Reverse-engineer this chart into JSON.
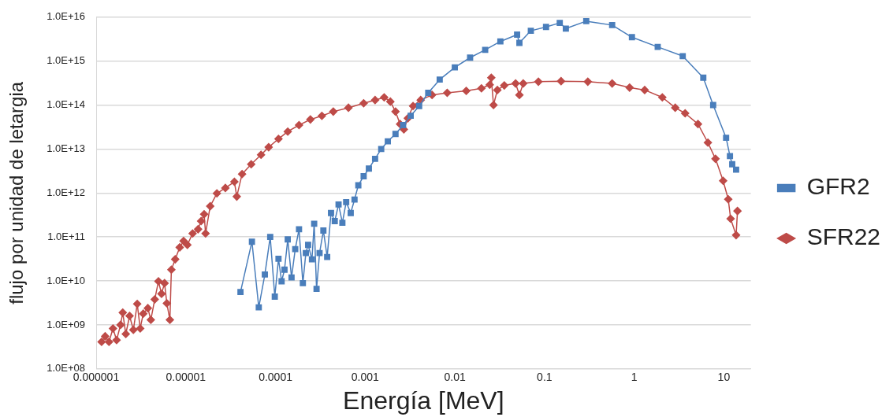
{
  "chart_data": {
    "type": "line",
    "xlabel": "Energía [MeV]",
    "ylabel": "flujo por unidad de letargia",
    "log": "xy",
    "grid": "y",
    "legend": "right",
    "xlim": [
      1e-06,
      20
    ],
    "xticks": [
      {
        "value": 1e-06,
        "label": "0.000001"
      },
      {
        "value": 1e-05,
        "label": "0.00001"
      },
      0.0001,
      0.001,
      0.01,
      0.1,
      1,
      10
    ],
    "ylim": [
      100000000.0,
      1e+16
    ],
    "yticks": [
      {
        "value": 100000000.0,
        "label": "1.0E+08"
      },
      {
        "value": 1000000000.0,
        "label": "1.0E+09"
      },
      {
        "value": 10000000000.0,
        "label": "1.0E+10"
      },
      {
        "value": 100000000000.0,
        "label": "1.0E+11"
      },
      {
        "value": 1000000000000.0,
        "label": "1.0E+12"
      },
      {
        "value": 10000000000000.0,
        "label": "1.0E+13"
      },
      {
        "value": 100000000000000.0,
        "label": "1.0E+14"
      },
      {
        "value": 1000000000000000.0,
        "label": "1.0E+15"
      },
      {
        "value": 1e+16,
        "label": "1.0E+16"
      }
    ],
    "series": [
      {
        "name": "GFR2",
        "color": "#4a7ebb",
        "marker": "square",
        "x": [
          4.07e-05,
          5.46e-05,
          6.51e-05,
          7.61e-05,
          8.73e-05,
          9.82e-05,
          0.000108,
          0.000117,
          0.000126,
          0.000137,
          0.000151,
          0.000166,
          0.000183,
          0.000202,
          0.000218,
          0.000231,
          0.000255,
          0.00027,
          0.000287,
          0.00031,
          0.000342,
          0.000377,
          0.000416,
          0.000458,
          0.000505,
          0.000557,
          0.000614,
          0.00069,
          0.000761,
          0.000839,
          0.000962,
          0.0011,
          0.00129,
          0.00151,
          0.00179,
          0.00218,
          0.00265,
          0.00322,
          0.004,
          0.00505,
          0.00678,
          0.01,
          0.0148,
          0.0218,
          0.0322,
          0.0495,
          0.0525,
          0.0704,
          0.104,
          0.148,
          0.173,
          0.292,
          0.568,
          0.944,
          1.83,
          3.48,
          5.9,
          7.6,
          10.6,
          11.7,
          12.4,
          13.7
        ],
        "values": [
          5600000000.0,
          78000000000.0,
          2500000000.0,
          14000000000.0,
          100000000000.0,
          4400000000.0,
          32000000000.0,
          9800000000.0,
          18000000000.0,
          88000000000.0,
          12000000000.0,
          53000000000.0,
          150000000000.0,
          8900000000.0,
          43000000000.0,
          66000000000.0,
          31000000000.0,
          200000000000.0,
          6600000000.0,
          43000000000.0,
          140000000000.0,
          35000000000.0,
          350000000000.0,
          230000000000.0,
          550000000000.0,
          210000000000.0,
          620000000000.0,
          350000000000.0,
          710000000000.0,
          1500000000000.0,
          2400000000000.0,
          3600000000000.0,
          6000000000000.0,
          10000000000000.0,
          15000000000000.0,
          22000000000000.0,
          35000000000000.0,
          57000000000000.0,
          95000000000000.0,
          190000000000000.0,
          380000000000000.0,
          720000000000000.0,
          1200000000000000.0,
          1800000000000000.0,
          2800000000000000.0,
          4000000000000000.0,
          2600000000000000.0,
          4900000000000000.0,
          6000000000000000.0,
          7400000000000000.0,
          5500000000000000.0,
          8100000000000000.0,
          6600000000000000.0,
          3500000000000000.0,
          2100000000000000.0,
          1300000000000000.0,
          420000000000000.0,
          100000000000000.0,
          18000000000000.0,
          6900000000000.0,
          4500000000000.0,
          3400000000000.0
        ]
      },
      {
        "name": "SFR22",
        "color": "#be4b48",
        "marker": "diamond",
        "x": [
          1.15e-06,
          1.26e-06,
          1.39e-06,
          1.54e-06,
          1.69e-06,
          1.87e-06,
          1.98e-06,
          2.14e-06,
          2.36e-06,
          2.6e-06,
          2.87e-06,
          3.1e-06,
          3.35e-06,
          3.77e-06,
          4.07e-06,
          4.5e-06,
          4.95e-06,
          5.36e-06,
          5.79e-06,
          6.14e-06,
          6.64e-06,
          6.9e-06,
          7.61e-06,
          8.55e-06,
          9.44e-06,
          1.04e-05,
          1.19e-05,
          1.37e-05,
          1.48e-05,
          1.6e-05,
          1.66e-05,
          1.87e-05,
          2.22e-05,
          2.76e-05,
          3.48e-05,
          3.7e-05,
          4.24e-05,
          5.36e-05,
          6.9e-05,
          8.39e-05,
          0.000108,
          0.000137,
          0.000183,
          0.000245,
          0.000329,
          0.000441,
          0.000651,
          0.000962,
          0.00129,
          0.00163,
          0.00191,
          0.00218,
          0.00245,
          0.0027,
          0.00299,
          0.00342,
          0.00416,
          0.00557,
          0.00822,
          0.0134,
          0.0198,
          0.0245,
          0.0255,
          0.027,
          0.0298,
          0.0356,
          0.0476,
          0.0525,
          0.0579,
          0.0855,
          0.153,
          0.304,
          0.568,
          0.889,
          1.31,
          2.06,
          2.87,
          3.7,
          5.15,
          6.64,
          8.07,
          9.82,
          11.2,
          11.9,
          13.7,
          14.2
        ],
        "values": [
          410000000.0,
          550000000.0,
          410000000.0,
          830000000.0,
          450000000.0,
          1000000000.0,
          1900000000.0,
          620000000.0,
          1600000000.0,
          770000000.0,
          3000000000.0,
          830000000.0,
          1800000000.0,
          2400000000.0,
          1300000000.0,
          3800000000.0,
          9800000000.0,
          5100000000.0,
          8900000000.0,
          3100000000.0,
          1300000000.0,
          18000000000.0,
          31000000000.0,
          58000000000.0,
          81000000000.0,
          66000000000.0,
          120000000000.0,
          150000000000.0,
          230000000000.0,
          330000000000.0,
          120000000000.0,
          500000000000.0,
          980000000000.0,
          1300000000000.0,
          1800000000000.0,
          830000000000.0,
          2700000000000.0,
          4500000000000.0,
          7400000000000.0,
          11000000000000.0,
          17000000000000.0,
          25000000000000.0,
          35000000000000.0,
          47000000000000.0,
          57000000000000.0,
          71000000000000.0,
          87000000000000.0,
          110000000000000.0,
          130000000000000.0,
          150000000000000.0,
          120000000000000.0,
          71000000000000.0,
          37000000000000.0,
          28000000000000.0,
          50000000000000.0,
          95000000000000.0,
          130000000000000.0,
          170000000000000.0,
          190000000000000.0,
          210000000000000.0,
          240000000000000.0,
          290000000000000.0,
          420000000000000.0,
          100000000000000.0,
          220000000000000.0,
          280000000000000.0,
          310000000000000.0,
          170000000000000.0,
          310000000000000.0,
          340000000000000.0,
          350000000000000.0,
          340000000000000.0,
          310000000000000.0,
          250000000000000.0,
          220000000000000.0,
          150000000000000.0,
          87000000000000.0,
          65000000000000.0,
          37000000000000.0,
          14000000000000.0,
          6000000000000.0,
          1900000000000.0,
          720000000000.0,
          260000000000.0,
          110000000000.0,
          390000000000.0
        ]
      }
    ]
  }
}
